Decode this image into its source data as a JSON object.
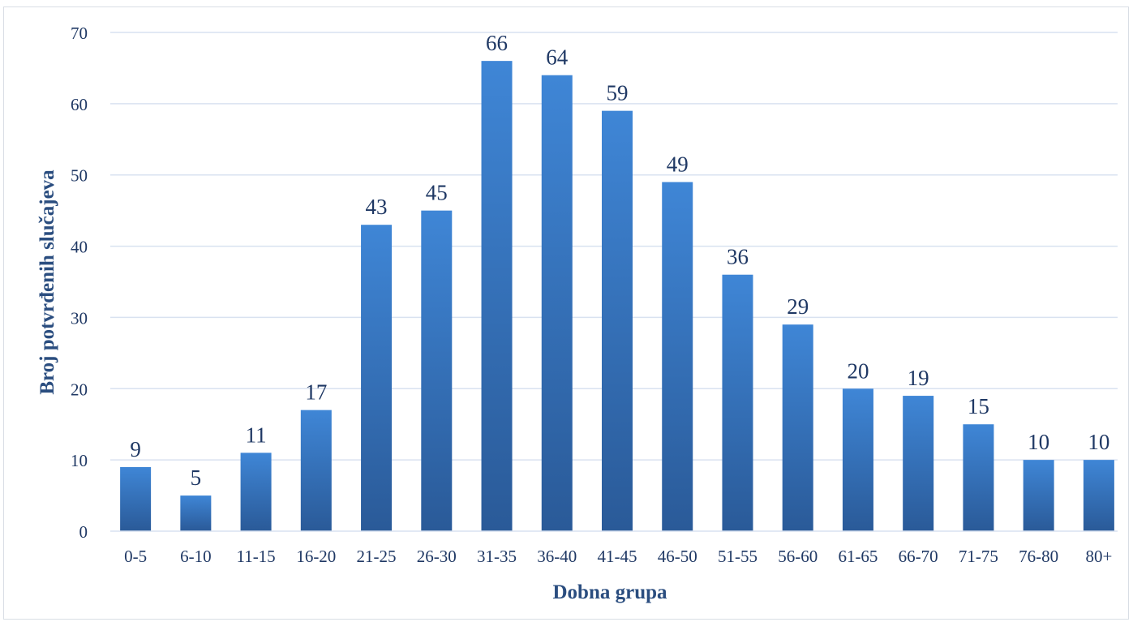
{
  "chart_data": {
    "type": "bar",
    "title": "",
    "xlabel": "Dobna grupa",
    "ylabel": "Broj potvrđenih slučajeva",
    "categories": [
      "0-5",
      "6-10",
      "11-15",
      "16-20",
      "21-25",
      "26-30",
      "31-35",
      "36-40",
      "41-45",
      "46-50",
      "51-55",
      "56-60",
      "61-65",
      "66-70",
      "71-75",
      "76-80",
      "80+"
    ],
    "values": [
      9,
      5,
      11,
      17,
      43,
      45,
      66,
      64,
      59,
      49,
      36,
      29,
      20,
      19,
      15,
      10,
      10
    ],
    "ylim": [
      0,
      70
    ],
    "yticks": [
      0,
      10,
      20,
      30,
      40,
      50,
      60,
      70
    ],
    "grid": true,
    "legend": "none",
    "data_labels": true,
    "colors": {
      "bar_top": "#3f86d6",
      "bar_bottom": "#2a5a98",
      "grid": "#d9e2f0",
      "text": "#1f3864",
      "axis_title": "#2a4d7f"
    }
  }
}
